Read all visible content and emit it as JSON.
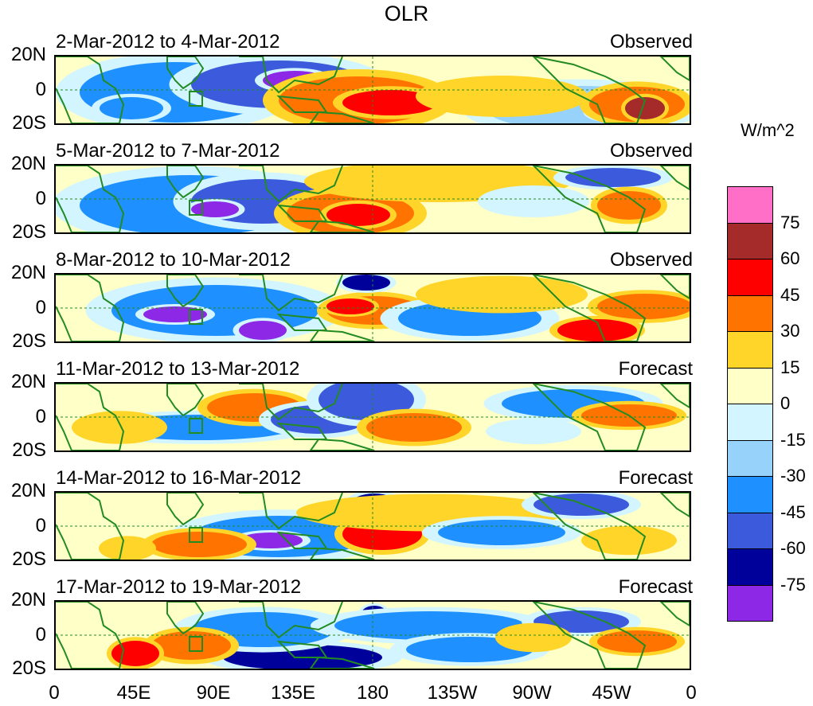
{
  "title": "OLR",
  "panels": [
    {
      "date_range": "2-Mar-2012 to 4-Mar-2012",
      "type": "Observed"
    },
    {
      "date_range": "5-Mar-2012 to 7-Mar-2012",
      "type": "Observed"
    },
    {
      "date_range": "8-Mar-2012 to 10-Mar-2012",
      "type": "Observed"
    },
    {
      "date_range": "11-Mar-2012 to 13-Mar-2012",
      "type": "Forecast"
    },
    {
      "date_range": "14-Mar-2012 to 16-Mar-2012",
      "type": "Forecast"
    },
    {
      "date_range": "17-Mar-2012 to 19-Mar-2012",
      "type": "Forecast"
    }
  ],
  "lat_labels": [
    "20N",
    "0",
    "20S"
  ],
  "lon_labels": [
    "0",
    "45E",
    "90E",
    "135E",
    "180",
    "135W",
    "90W",
    "45W",
    "0"
  ],
  "colorbar": {
    "unit": "W/m^2",
    "tick_labels": [
      "75",
      "60",
      "45",
      "30",
      "15",
      "0",
      "-15",
      "-30",
      "-45",
      "-60",
      "-75"
    ],
    "colors": [
      "#ff6ec7",
      "#a52a2a",
      "#ff0000",
      "#ff7400",
      "#ffd52a",
      "#ffffc8",
      "#d2f5ff",
      "#96d2fa",
      "#1e90ff",
      "#3c5adc",
      "#00009b",
      "#8c28e6"
    ]
  },
  "colors": {
    "coastline": "#228b22",
    "equator": "#228b22"
  }
}
